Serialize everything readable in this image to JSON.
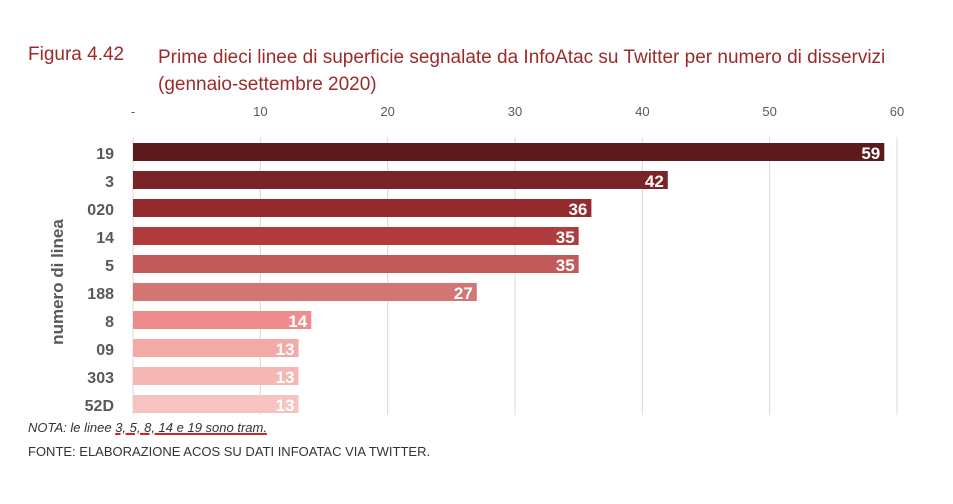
{
  "figure": {
    "number": "Figura 4.42",
    "title": "Prime dieci linee di superficie segnalate da InfoAtac su Twitter per numero di disservizi (gennaio-settembre 2020)"
  },
  "note": {
    "prefix": "NOTA: le linee ",
    "underlined": "3, 5, 8, 14 e 19 sono tram."
  },
  "source": "FONTE: ELABORAZIONE ACOS SU DATI INFOATAC VIA TWITTER.",
  "colors": {
    "title": "#9b2b2b",
    "bars": [
      "#5c1a1d",
      "#7a2427",
      "#932a2e",
      "#b03c3e",
      "#c2595a",
      "#d27674",
      "#ee8d8b",
      "#f3a9a6",
      "#f5b7b4",
      "#f6c3c1"
    ],
    "grid": "#d9d9d9",
    "tick_text": "#595959",
    "category_text": "#595959"
  },
  "chart_data": {
    "type": "bar",
    "orientation": "horizontal",
    "ylabel": "numero di linea",
    "xlabel": "",
    "categories": [
      "19",
      "3",
      "020",
      "14",
      "5",
      "188",
      "8",
      "09",
      "303",
      "52D"
    ],
    "values": [
      59,
      42,
      36,
      35,
      35,
      27,
      14,
      13,
      13,
      13
    ],
    "xlim": [
      0,
      60
    ],
    "x_ticks": [
      0,
      10,
      20,
      30,
      40,
      50,
      60
    ],
    "x_tick_labels": [
      "-",
      "10",
      "20",
      "30",
      "40",
      "50",
      "60"
    ],
    "x_axis_position": "top",
    "grid": true,
    "data_labels": true
  }
}
